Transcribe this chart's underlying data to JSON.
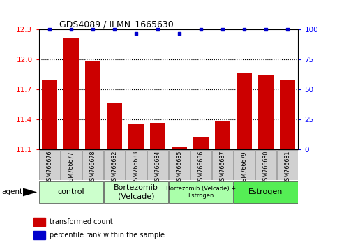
{
  "title": "GDS4089 / ILMN_1665630",
  "samples": [
    "GSM766676",
    "GSM766677",
    "GSM766678",
    "GSM766682",
    "GSM766683",
    "GSM766684",
    "GSM766685",
    "GSM766686",
    "GSM766687",
    "GSM766679",
    "GSM766680",
    "GSM766681"
  ],
  "bar_values": [
    11.79,
    12.22,
    11.99,
    11.57,
    11.35,
    11.36,
    11.12,
    11.22,
    11.39,
    11.86,
    11.84,
    11.79
  ],
  "percentile_values": [
    100,
    100,
    100,
    100,
    97,
    100,
    97,
    100,
    100,
    100,
    100,
    100
  ],
  "ylim_left": [
    11.1,
    12.3
  ],
  "ylim_right": [
    0,
    100
  ],
  "yticks_left": [
    11.1,
    11.4,
    11.7,
    12.0,
    12.3
  ],
  "yticks_right": [
    0,
    25,
    50,
    75,
    100
  ],
  "bar_color": "#cc0000",
  "percentile_color": "#0000cc",
  "groups": [
    {
      "label": "control",
      "start": 0,
      "end": 3,
      "color": "#ccffcc"
    },
    {
      "label": "Bortezomib\n(Velcade)",
      "start": 3,
      "end": 6,
      "color": "#ccffcc"
    },
    {
      "label": "Bortezomib (Velcade) +\nEstrogen",
      "start": 6,
      "end": 9,
      "color": "#aaffaa"
    },
    {
      "label": "Estrogen",
      "start": 9,
      "end": 12,
      "color": "#55ee55"
    }
  ],
  "agent_label": "agent",
  "legend_items": [
    {
      "color": "#cc0000",
      "label": "transformed count"
    },
    {
      "color": "#0000cc",
      "label": "percentile rank within the sample"
    }
  ],
  "grid_color": "#000000",
  "bg_color": "#ffffff",
  "tick_area_bg": "#d0d0d0"
}
